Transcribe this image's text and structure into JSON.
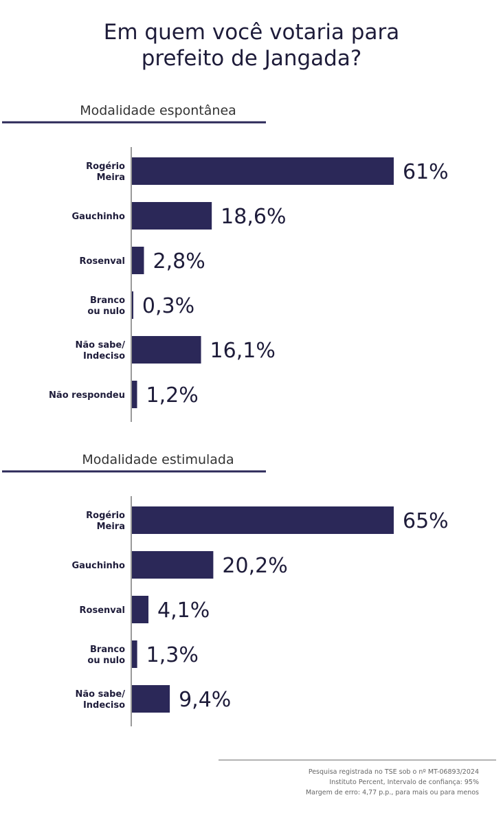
{
  "title": "Em quem você votaria para prefeito de Jangada?",
  "chart_data": [
    {
      "type": "bar",
      "orientation": "horizontal",
      "subtitle": "Modalidade espontânea",
      "color": "#2b2858",
      "categories": [
        "Rogério\nMeira",
        "Gauchinho",
        "Rosenval",
        "Branco\nou nulo",
        "Não sabe/\nIndeciso",
        "Não respondeu"
      ],
      "values": [
        61,
        18.6,
        2.8,
        0.3,
        16.1,
        1.2
      ],
      "value_labels": [
        "61%",
        "18,6%",
        "2,8%",
        "0,3%",
        "16,1%",
        "1,2%"
      ]
    },
    {
      "type": "bar",
      "orientation": "horizontal",
      "subtitle": "Modalidade estimulada",
      "color": "#2b2858",
      "categories": [
        "Rogério\nMeira",
        "Gauchinho",
        "Rosenval",
        "Branco\nou nulo",
        "Não sabe/\nIndeciso"
      ],
      "values": [
        65,
        20.2,
        4.1,
        1.3,
        9.4
      ],
      "value_labels": [
        "65%",
        "20,2%",
        "4,1%",
        "1,3%",
        "9,4%"
      ]
    }
  ],
  "footnote": [
    "Pesquisa registrada no TSE sob o nº MT-06893/2024",
    "Instituto Percent, Intervalo de confiança: 95%",
    "Margem de erro: 4,77 p.p., para mais ou para menos"
  ]
}
